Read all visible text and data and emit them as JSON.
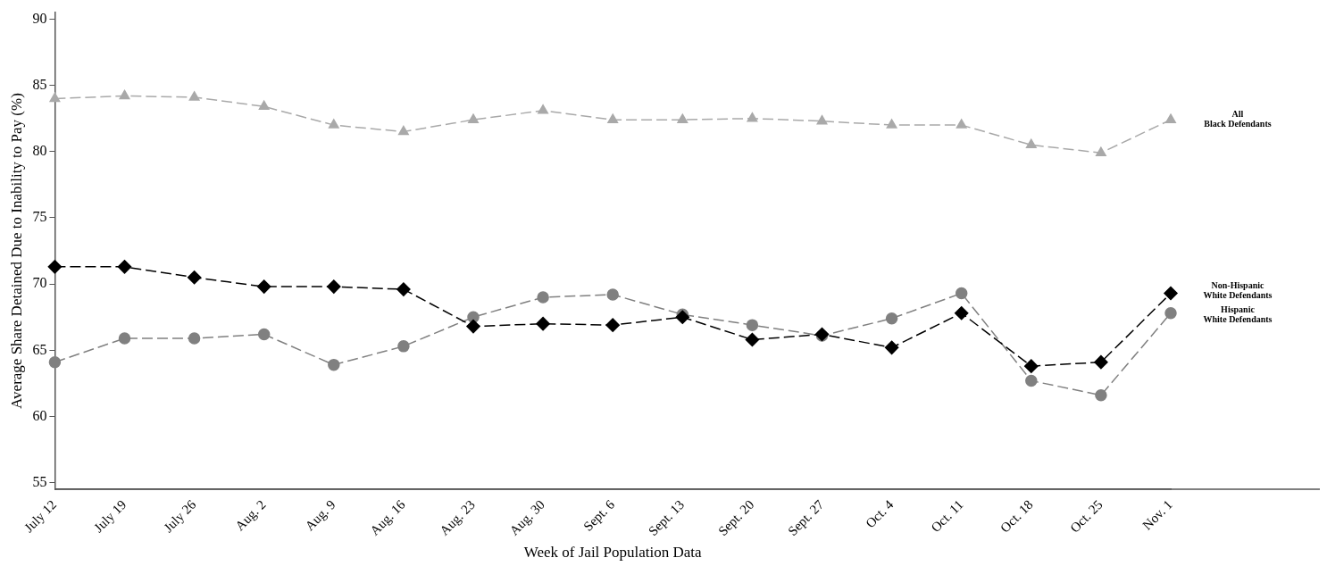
{
  "chart_data": {
    "type": "line",
    "xlabel": "Week of Jail Population Data",
    "ylabel": "Average Share Detained Due to Inability to Pay (%)",
    "categories": [
      "July 12",
      "July 19",
      "July 26",
      "Aug. 2",
      "Aug. 9",
      "Aug. 16",
      "Aug. 23",
      "Aug. 30",
      "Sept. 6",
      "Sept. 13",
      "Sept. 20",
      "Sept. 27",
      "Oct. 4",
      "Oct. 11",
      "Oct. 18",
      "Oct. 25",
      "Nov. 1"
    ],
    "ylim": [
      54.5,
      90.5
    ],
    "yticks": [
      55,
      60,
      65,
      70,
      75,
      80,
      85,
      90
    ],
    "grid": false,
    "legend": false,
    "line_style": "dashed",
    "series": [
      {
        "name": "All\nBlack Defendants",
        "color": "#a9a9a9",
        "marker": "triangle",
        "values": [
          84.0,
          84.2,
          84.1,
          83.4,
          82.0,
          81.5,
          82.4,
          83.1,
          82.4,
          82.4,
          82.5,
          82.3,
          82.0,
          82.0,
          80.5,
          79.9,
          82.4
        ]
      },
      {
        "name": "Non-Hispanic\nWhite Defendants",
        "color": "#000000",
        "marker": "diamond",
        "values": [
          71.3,
          71.3,
          70.5,
          69.8,
          69.8,
          69.6,
          66.8,
          67.0,
          66.9,
          67.5,
          65.8,
          66.2,
          65.2,
          67.8,
          63.8,
          64.1,
          69.3
        ]
      },
      {
        "name": "Hispanic\nWhite Defendants",
        "color": "#808080",
        "marker": "circle",
        "values": [
          64.1,
          65.9,
          65.9,
          66.2,
          63.9,
          65.3,
          67.5,
          69.0,
          69.2,
          67.7,
          66.9,
          66.1,
          67.4,
          69.3,
          62.7,
          61.6,
          67.8
        ]
      }
    ]
  }
}
